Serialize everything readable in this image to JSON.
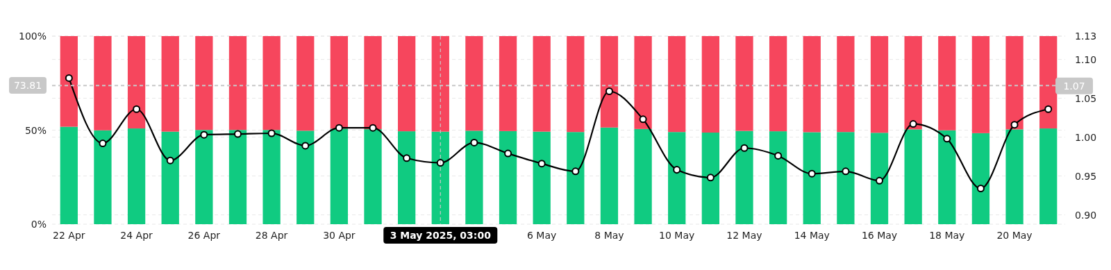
{
  "chart_data": {
    "type": "bar",
    "stacked": true,
    "x": [
      "2025-04-22",
      "2025-04-23",
      "2025-04-24",
      "2025-04-25",
      "2025-04-26",
      "2025-04-27",
      "2025-04-28",
      "2025-04-29",
      "2025-04-30",
      "2025-05-01",
      "2025-05-02",
      "2025-05-03",
      "2025-05-04",
      "2025-05-05",
      "2025-05-06",
      "2025-05-07",
      "2025-05-08",
      "2025-05-09",
      "2025-05-10",
      "2025-05-11",
      "2025-05-12",
      "2025-05-13",
      "2025-05-14",
      "2025-05-15",
      "2025-05-16",
      "2025-05-17",
      "2025-05-18",
      "2025-05-19",
      "2025-05-20",
      "2025-05-21"
    ],
    "xlim": [
      "2025-04-21T12:00",
      "2025-05-21T12:00"
    ],
    "xticks": [
      {
        "value": "2025-04-22",
        "label": "22 Apr"
      },
      {
        "value": "2025-04-24",
        "label": "24 Apr"
      },
      {
        "value": "2025-04-26",
        "label": "26 Apr"
      },
      {
        "value": "2025-04-28",
        "label": "28 Apr"
      },
      {
        "value": "2025-04-30",
        "label": "30 Apr"
      },
      {
        "value": "2025-05-06",
        "label": "6 May"
      },
      {
        "value": "2025-05-08",
        "label": "8 May"
      },
      {
        "value": "2025-05-10",
        "label": "10 May"
      },
      {
        "value": "2025-05-12",
        "label": "12 May"
      },
      {
        "value": "2025-05-14",
        "label": "14 May"
      },
      {
        "value": "2025-05-16",
        "label": "16 May"
      },
      {
        "value": "2025-05-18",
        "label": "18 May"
      },
      {
        "value": "2025-05-20",
        "label": "20 May"
      }
    ],
    "ylim": [
      0,
      100
    ],
    "yticks": [
      {
        "value": 0,
        "label": "0%"
      },
      {
        "value": 50,
        "label": "50%"
      },
      {
        "value": 100,
        "label": "100%"
      }
    ],
    "y2lim": [
      0.888,
      1.13
    ],
    "y2ticks": [
      {
        "value": 0.9,
        "label": "0.90"
      },
      0.95,
      {
        "value": 1,
        "label": "1.00"
      },
      1.05,
      {
        "value": 1.1,
        "label": "1.10"
      },
      1.13
    ],
    "grid": true,
    "marker": "circle",
    "line_style": "solid",
    "series": [
      {
        "color": "#10cb81",
        "values": [
          51.8,
          49.9,
          50.9,
          49.2,
          50.1,
          50.1,
          50.1,
          49.7,
          50.8,
          50.5,
          49.4,
          49.2,
          49.7,
          49.5,
          49.2,
          49.0,
          51.4,
          50.6,
          49.0,
          48.7,
          49.6,
          49.4,
          48.9,
          49.0,
          48.6,
          50.4,
          49.9,
          48.4,
          50.4,
          50.9
        ]
      },
      {
        "color": "#f6465d",
        "values": [
          48.2,
          50.1,
          49.1,
          50.8,
          49.9,
          49.9,
          49.9,
          50.3,
          49.2,
          49.5,
          50.6,
          50.8,
          50.3,
          50.5,
          50.8,
          51.0,
          48.6,
          49.4,
          51.0,
          51.3,
          50.4,
          50.6,
          51.1,
          51.0,
          51.4,
          49.6,
          50.1,
          51.6,
          49.6,
          49.1
        ]
      },
      {
        "type": "line",
        "axis": "y2",
        "color": "#000000",
        "values": [
          1.076,
          0.992,
          1.036,
          0.97,
          1.003,
          1.004,
          1.005,
          0.989,
          1.012,
          1.012,
          0.973,
          0.967,
          0.993,
          0.979,
          0.966,
          0.956,
          1.059,
          1.023,
          0.958,
          0.948,
          0.986,
          0.976,
          0.953,
          0.956,
          0.944,
          1.017,
          0.998,
          0.934,
          1.016,
          1.036
        ]
      }
    ],
    "ref_lines": [
      {
        "axis": "y",
        "value": 73.81,
        "label": "73.81",
        "color": "#c8c8c8",
        "line_style": "dashed"
      },
      {
        "axis": "y2",
        "value": 1.066,
        "label": "1.07",
        "color": "#c8c8c8",
        "line_style": "dashed"
      },
      {
        "axis": "x",
        "value": "2025-05-03",
        "label": "3 May 2025, 03:00",
        "color": "#c8c8c8",
        "line_style": "dashed"
      }
    ]
  }
}
